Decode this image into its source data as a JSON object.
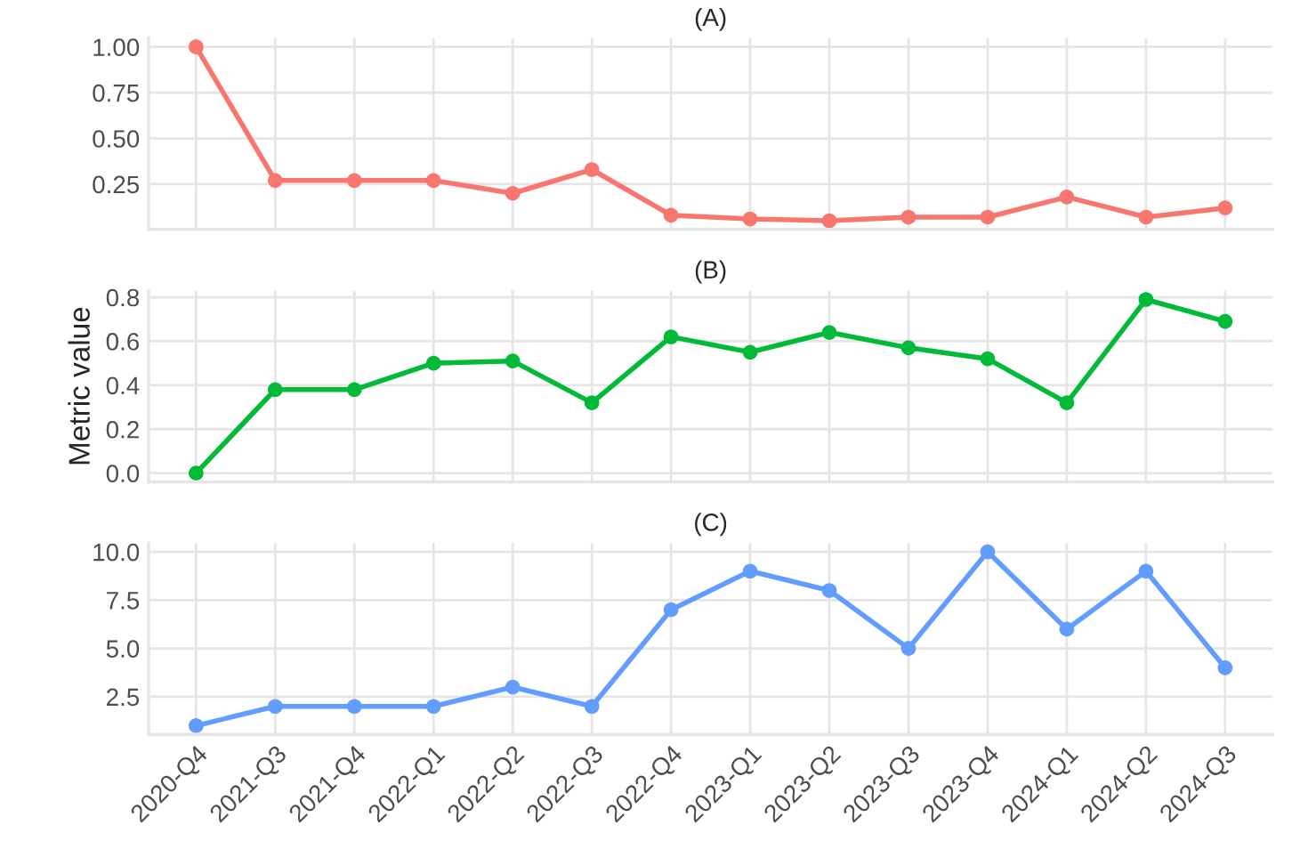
{
  "chart_data": [
    {
      "type": "line",
      "title": "(A)",
      "categories": [
        null,
        null,
        null,
        null,
        null,
        null,
        null,
        null,
        null,
        null,
        null,
        null,
        null,
        null
      ],
      "series": [
        {
          "color": "#f8766d",
          "values": [
            1.0,
            0.27,
            0.27,
            0.27,
            0.2,
            0.33,
            0.08,
            0.06,
            0.05,
            0.07,
            0.07,
            0.18,
            0.07,
            0.12
          ]
        }
      ],
      "ylim": [
        0.0025,
        1.0475
      ],
      "yticks": [
        {
          "value": 0.25,
          "label": "0.25"
        },
        {
          "value": 0.5,
          "label": "0.50"
        },
        {
          "value": 0.75,
          "label": "0.75"
        },
        {
          "value": 1.0,
          "label": "1.00"
        }
      ],
      "grid": true,
      "marker": "circle",
      "tick_labels": "y"
    },
    {
      "type": "line",
      "title": "(B)",
      "ylabel": "Metric value",
      "categories": [
        null,
        null,
        null,
        null,
        null,
        null,
        null,
        null,
        null,
        null,
        null,
        null,
        null,
        null
      ],
      "series": [
        {
          "color": "#00ba38",
          "values": [
            0.0,
            0.38,
            0.38,
            0.5,
            0.51,
            0.32,
            0.62,
            0.55,
            0.64,
            0.57,
            0.52,
            0.32,
            0.79,
            0.69
          ]
        }
      ],
      "ylim": [
        -0.04,
        0.83
      ],
      "yticks": [
        {
          "value": 0.0,
          "label": "0.0"
        },
        {
          "value": 0.2,
          "label": "0.2"
        },
        {
          "value": 0.4,
          "label": "0.4"
        },
        {
          "value": 0.6,
          "label": "0.6"
        },
        {
          "value": 0.8,
          "label": "0.8"
        }
      ],
      "grid": true,
      "marker": "circle",
      "tick_labels": "y"
    },
    {
      "type": "line",
      "title": "(C)",
      "categories": [
        "2020-Q4",
        "2021-Q3",
        "2021-Q4",
        "2022-Q1",
        "2022-Q2",
        "2022-Q3",
        "2022-Q4",
        "2023-Q1",
        "2023-Q2",
        "2023-Q3",
        "2023-Q4",
        "2024-Q1",
        "2024-Q2",
        "2024-Q3"
      ],
      "series": [
        {
          "color": "#619cff",
          "values": [
            1,
            2,
            2,
            2,
            3,
            2,
            7,
            9,
            8,
            5,
            10,
            6,
            9,
            4
          ]
        }
      ],
      "ylim": [
        0.55,
        10.45
      ],
      "yticks": [
        {
          "value": 2.5,
          "label": "2.5"
        },
        {
          "value": 5.0,
          "label": "5.0"
        },
        {
          "value": 7.5,
          "label": "7.5"
        },
        {
          "value": 10.0,
          "label": "10.0"
        }
      ],
      "grid": true,
      "marker": "circle"
    }
  ]
}
